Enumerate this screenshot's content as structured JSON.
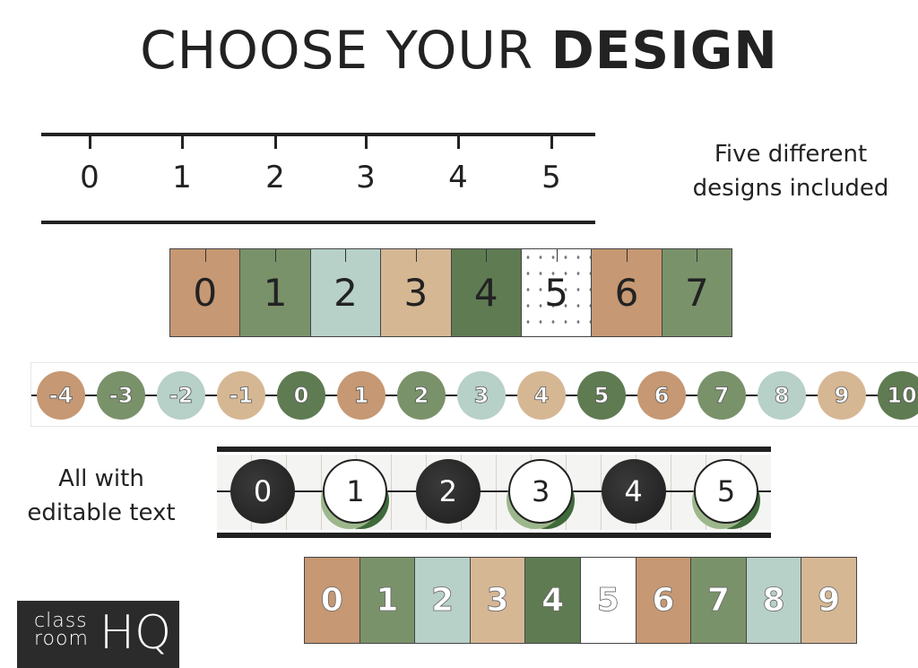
{
  "title": {
    "regular": "CHOOSE YOUR ",
    "bold": "DESIGN"
  },
  "captions": {
    "designs_line1": "Five different",
    "designs_line2": "designs included",
    "editable_line1": "All with",
    "editable_line2": "editable text"
  },
  "colors": {
    "tan": "#c69873",
    "sage": "#7a926a",
    "mint": "#b7d0c8",
    "beige": "#d6b794",
    "forest": "#5f7b52",
    "charcoal": "#2b2b2b"
  },
  "design1_plain_ruler": {
    "numbers": [
      "0",
      "1",
      "2",
      "3",
      "4",
      "5"
    ]
  },
  "design2_tabbed_cards": {
    "numbers": [
      "0",
      "1",
      "2",
      "3",
      "4",
      "5",
      "6",
      "7"
    ],
    "fills": [
      "tan",
      "sage",
      "mint",
      "beige",
      "forest",
      "pattern",
      "tan",
      "sage"
    ]
  },
  "design3_circles": {
    "numbers": [
      "-4",
      "-3",
      "-2",
      "-1",
      "0",
      "1",
      "2",
      "3",
      "4",
      "5",
      "6",
      "7",
      "8",
      "9",
      "10"
    ],
    "fills": [
      "tan",
      "sage",
      "mint",
      "beige",
      "forest",
      "tan",
      "sage",
      "mint",
      "beige",
      "forest",
      "tan",
      "sage",
      "mint",
      "beige",
      "forest"
    ]
  },
  "design4_farmhouse": {
    "numbers": [
      "0",
      "1",
      "2",
      "3",
      "4",
      "5"
    ],
    "styles": [
      "chalkboard",
      "wreath",
      "chalkboard",
      "wreath",
      "chalkboard",
      "wreath"
    ]
  },
  "design5_outlined_cards": {
    "numbers": [
      "0",
      "1",
      "2",
      "3",
      "4",
      "5",
      "6",
      "7",
      "8",
      "9"
    ],
    "fills": [
      "tan",
      "sage",
      "mint",
      "beige",
      "forest",
      "white",
      "tan",
      "sage",
      "mint",
      "beige"
    ]
  },
  "logo": {
    "line1": "class",
    "line2": "room",
    "mark": "HQ"
  }
}
